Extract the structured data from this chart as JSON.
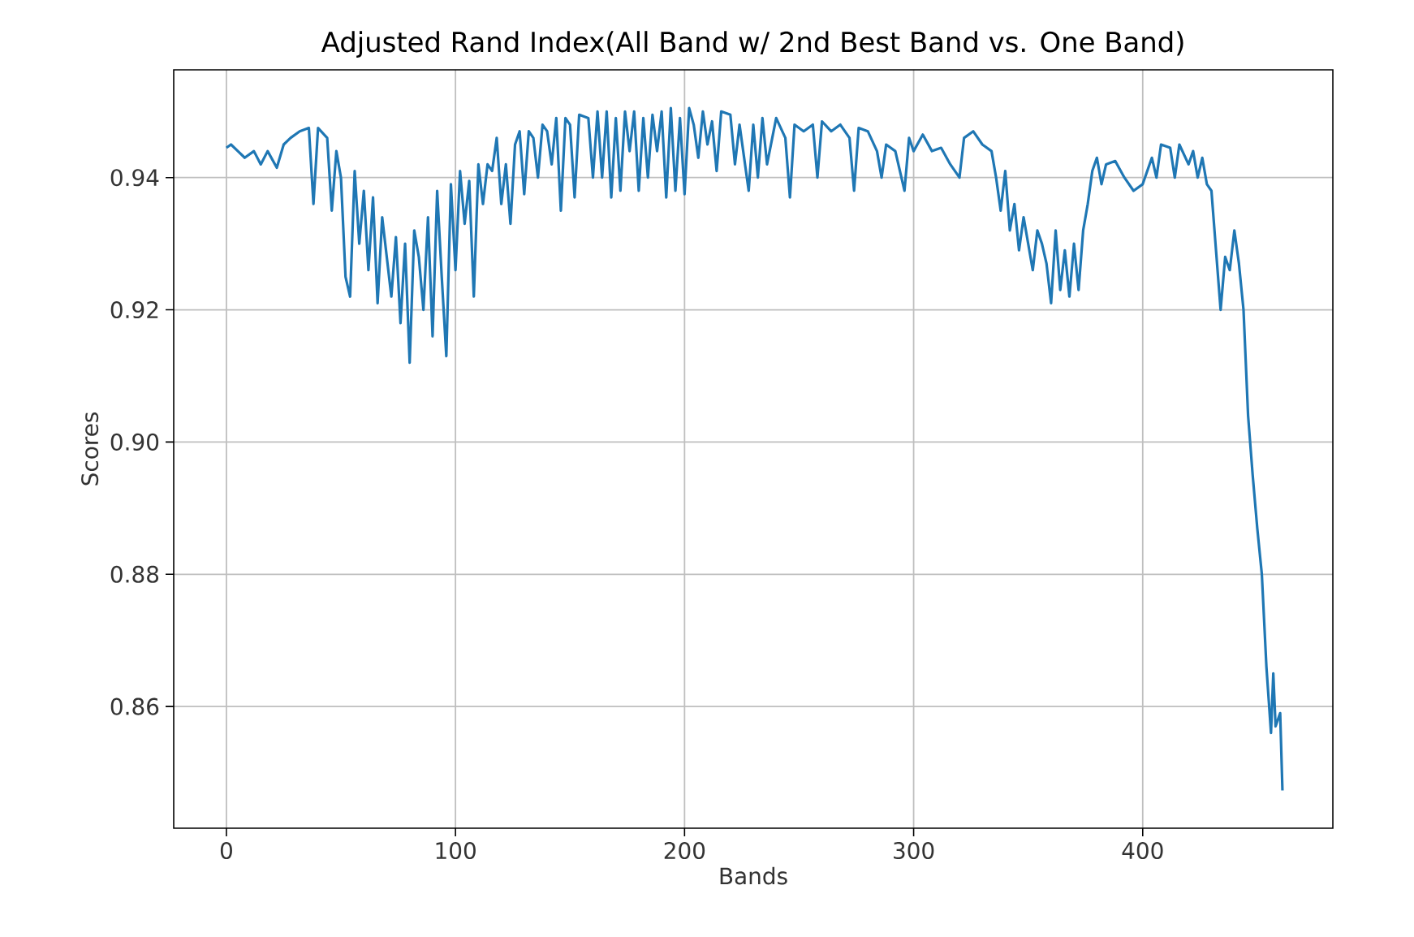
{
  "chart_data": {
    "type": "line",
    "title": "Adjusted Rand Index(All Band w/ 2nd Best Band vs. One Band)",
    "xlabel": "Bands",
    "ylabel": "Scores",
    "xlim": [
      -23,
      483
    ],
    "ylim": [
      0.8416,
      0.9563
    ],
    "xticks": [
      0,
      100,
      200,
      300,
      400
    ],
    "yticks": [
      {
        "value": 0.86,
        "label": "0.86"
      },
      {
        "value": 0.88,
        "label": "0.88"
      },
      {
        "value": 0.9,
        "label": "0.90"
      },
      {
        "value": 0.92,
        "label": "0.92"
      },
      {
        "value": 0.94,
        "label": "0.94"
      }
    ],
    "grid": true,
    "marker": "none",
    "line_style": "solid",
    "x": [
      0,
      2,
      5,
      8,
      12,
      15,
      18,
      22,
      25,
      28,
      32,
      36,
      38,
      40,
      44,
      46,
      48,
      50,
      52,
      54,
      56,
      58,
      60,
      62,
      64,
      66,
      68,
      72,
      74,
      76,
      78,
      80,
      82,
      84,
      86,
      88,
      90,
      92,
      94,
      96,
      98,
      100,
      102,
      104,
      106,
      108,
      110,
      112,
      114,
      116,
      118,
      120,
      122,
      124,
      126,
      128,
      130,
      132,
      134,
      136,
      138,
      140,
      142,
      144,
      146,
      148,
      150,
      152,
      154,
      158,
      160,
      162,
      164,
      166,
      168,
      170,
      172,
      174,
      176,
      178,
      180,
      182,
      184,
      186,
      188,
      190,
      192,
      194,
      196,
      198,
      200,
      202,
      204,
      206,
      208,
      210,
      212,
      214,
      216,
      220,
      222,
      224,
      228,
      230,
      232,
      234,
      236,
      240,
      244,
      246,
      248,
      252,
      256,
      258,
      260,
      264,
      268,
      272,
      274,
      276,
      280,
      284,
      286,
      288,
      292,
      296,
      298,
      300,
      304,
      308,
      312,
      316,
      320,
      322,
      326,
      330,
      334,
      336,
      338,
      340,
      342,
      344,
      346,
      348,
      352,
      354,
      356,
      358,
      360,
      362,
      364,
      366,
      368,
      370,
      372,
      374,
      376,
      378,
      380,
      382,
      384,
      388,
      392,
      396,
      400,
      404,
      406,
      408,
      412,
      414,
      416,
      420,
      422,
      424,
      426,
      428,
      430,
      432,
      434,
      436,
      438,
      440,
      442,
      444,
      446,
      448,
      450,
      452,
      454,
      456,
      457,
      458,
      460,
      461
    ],
    "series": [
      {
        "color": "#1f77b4",
        "values": [
          0.9445,
          0.945,
          0.944,
          0.943,
          0.944,
          0.942,
          0.944,
          0.9415,
          0.945,
          0.946,
          0.947,
          0.9475,
          0.936,
          0.9475,
          0.946,
          0.935,
          0.944,
          0.94,
          0.925,
          0.922,
          0.941,
          0.93,
          0.938,
          0.926,
          0.937,
          0.921,
          0.934,
          0.922,
          0.931,
          0.918,
          0.93,
          0.912,
          0.932,
          0.928,
          0.92,
          0.934,
          0.916,
          0.938,
          0.925,
          0.913,
          0.939,
          0.926,
          0.941,
          0.933,
          0.9395,
          0.922,
          0.942,
          0.936,
          0.942,
          0.941,
          0.946,
          0.936,
          0.942,
          0.933,
          0.945,
          0.947,
          0.9375,
          0.947,
          0.946,
          0.94,
          0.948,
          0.947,
          0.942,
          0.949,
          0.935,
          0.949,
          0.948,
          0.937,
          0.9495,
          0.949,
          0.94,
          0.95,
          0.94,
          0.95,
          0.937,
          0.949,
          0.938,
          0.95,
          0.944,
          0.95,
          0.938,
          0.949,
          0.94,
          0.9495,
          0.944,
          0.95,
          0.937,
          0.9505,
          0.938,
          0.949,
          0.9375,
          0.9505,
          0.948,
          0.943,
          0.95,
          0.945,
          0.9485,
          0.941,
          0.95,
          0.9495,
          0.942,
          0.948,
          0.938,
          0.948,
          0.94,
          0.949,
          0.942,
          0.949,
          0.946,
          0.937,
          0.948,
          0.947,
          0.948,
          0.94,
          0.9485,
          0.947,
          0.948,
          0.946,
          0.938,
          0.9475,
          0.947,
          0.944,
          0.94,
          0.945,
          0.944,
          0.938,
          0.946,
          0.944,
          0.9465,
          0.944,
          0.9445,
          0.942,
          0.94,
          0.946,
          0.947,
          0.945,
          0.944,
          0.94,
          0.935,
          0.941,
          0.932,
          0.936,
          0.929,
          0.934,
          0.926,
          0.932,
          0.93,
          0.927,
          0.921,
          0.932,
          0.923,
          0.929,
          0.922,
          0.93,
          0.923,
          0.932,
          0.936,
          0.941,
          0.943,
          0.939,
          0.942,
          0.9425,
          0.94,
          0.938,
          0.939,
          0.943,
          0.94,
          0.945,
          0.9445,
          0.94,
          0.945,
          0.942,
          0.944,
          0.94,
          0.943,
          0.939,
          0.938,
          0.929,
          0.92,
          0.928,
          0.926,
          0.932,
          0.927,
          0.92,
          0.904,
          0.895,
          0.887,
          0.88,
          0.866,
          0.856,
          0.865,
          0.857,
          0.859,
          0.8473
        ]
      }
    ]
  }
}
